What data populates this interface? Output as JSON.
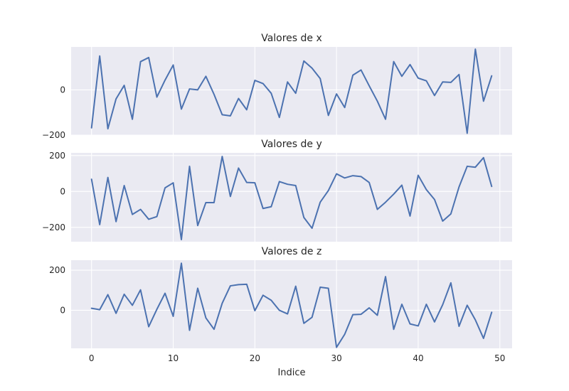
{
  "chart_data": {
    "type": "line",
    "xlabel": "Indice",
    "x_ticks": [
      0,
      10,
      20,
      30,
      40,
      50
    ],
    "xlim": [
      -2.5,
      51.5
    ],
    "subplots": [
      {
        "title": "Valores de x",
        "ylim": [
          -200,
          190
        ],
        "y_ticks": [
          -200,
          0
        ],
        "series": [
          {
            "values": [
              -168,
              150,
              -172,
              -40,
              20,
              -130,
              125,
              143,
              -32,
              43,
              110,
              -85,
              4,
              0,
              60,
              -20,
              -110,
              -115,
              -38,
              -88,
              42,
              28,
              -15,
              -122,
              35,
              -15,
              128,
              96,
              50,
              -113,
              -18,
              -78,
              65,
              88,
              18,
              -50,
              -130,
              125,
              60,
              112,
              52,
              40,
              -25,
              35,
              33,
              68,
              -192,
              180,
              -50,
              62
            ]
          }
        ]
      },
      {
        "title": "Valores de y",
        "ylim": [
          -280,
          215
        ],
        "y_ticks": [
          -200,
          0,
          200
        ],
        "series": [
          {
            "values": [
              68,
              -185,
              78,
              -168,
              33,
              -128,
              -100,
              -155,
              -140,
              20,
              48,
              -268,
              140,
              -190,
              -62,
              -62,
              195,
              -28,
              130,
              50,
              48,
              -95,
              -85,
              55,
              40,
              33,
              -145,
              -205,
              -60,
              5,
              98,
              75,
              88,
              83,
              50,
              -100,
              -60,
              -15,
              35,
              -137,
              90,
              10,
              -45,
              -165,
              -125,
              25,
              140,
              135,
              188,
              28
            ]
          }
        ]
      },
      {
        "title": "Valores de z",
        "ylim": [
          -190,
          250
        ],
        "y_ticks": [
          0,
          200
        ],
        "series": [
          {
            "values": [
              10,
              3,
              78,
              -15,
              80,
              25,
              102,
              -82,
              5,
              85,
              -30,
              235,
              -100,
              110,
              -38,
              -95,
              35,
              122,
              128,
              130,
              -2,
              75,
              50,
              0,
              -18,
              120,
              -65,
              -35,
              115,
              110,
              -185,
              -120,
              -22,
              -20,
              12,
              -25,
              168,
              -95,
              30,
              -68,
              -78,
              30,
              -58,
              28,
              137,
              -80,
              25,
              -48,
              -140,
              -10
            ]
          }
        ]
      }
    ]
  }
}
